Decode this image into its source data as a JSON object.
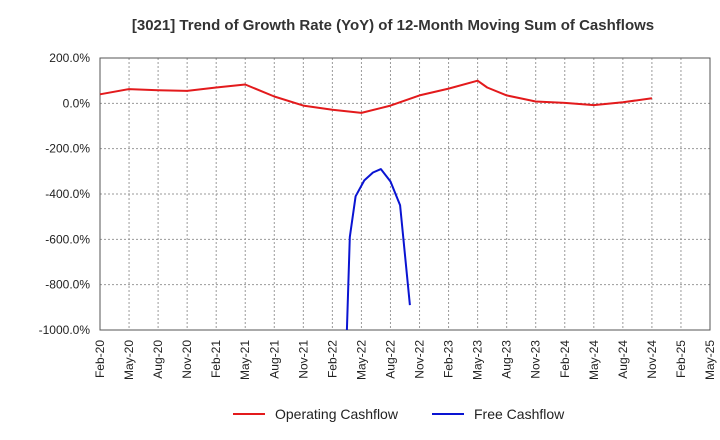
{
  "chart_data": {
    "type": "line",
    "title": "[3021]  Trend of Growth Rate (YoY) of 12-Month Moving Sum of Cashflows",
    "xlabel": "",
    "ylabel": "",
    "ylim": [
      -1000,
      200
    ],
    "yticks": [
      200,
      0,
      -200,
      -400,
      -600,
      -800,
      -1000
    ],
    "ytick_labels": [
      "200.0%",
      "0.0%",
      "-200.0%",
      "-400.0%",
      "-600.0%",
      "-800.0%",
      "-1000.0%"
    ],
    "categories": [
      "Feb-20",
      "May-20",
      "Aug-20",
      "Nov-20",
      "Feb-21",
      "May-21",
      "Aug-21",
      "Nov-21",
      "Feb-22",
      "May-22",
      "Aug-22",
      "Nov-22",
      "Feb-23",
      "May-23",
      "Aug-23",
      "Nov-23",
      "Feb-24",
      "May-24",
      "Aug-24",
      "Nov-24",
      "Feb-25",
      "May-25"
    ],
    "grid": true,
    "legend_position": "bottom",
    "series": [
      {
        "name": "Operating Cashflow",
        "color": "#e31a1c",
        "points": [
          [
            0,
            40
          ],
          [
            1,
            63
          ],
          [
            2,
            58
          ],
          [
            3,
            55
          ],
          [
            4,
            70
          ],
          [
            5,
            83
          ],
          [
            6,
            30
          ],
          [
            7,
            -10
          ],
          [
            8,
            -28
          ],
          [
            9,
            -42
          ],
          [
            10,
            -10
          ],
          [
            11,
            35
          ],
          [
            12,
            65
          ],
          [
            13,
            100
          ],
          [
            13.33,
            70
          ],
          [
            14,
            35
          ],
          [
            15,
            8
          ],
          [
            16,
            2
          ],
          [
            17,
            -8
          ],
          [
            18,
            5
          ],
          [
            19,
            22
          ]
        ]
      },
      {
        "name": "Free Cashflow",
        "color": "#0a14d2",
        "points": [
          [
            8.5,
            -1000
          ],
          [
            8.6,
            -590
          ],
          [
            8.8,
            -410
          ],
          [
            9.1,
            -340
          ],
          [
            9.4,
            -305
          ],
          [
            9.67,
            -290
          ],
          [
            10.0,
            -345
          ],
          [
            10.33,
            -450
          ],
          [
            10.67,
            -890
          ]
        ]
      }
    ]
  }
}
